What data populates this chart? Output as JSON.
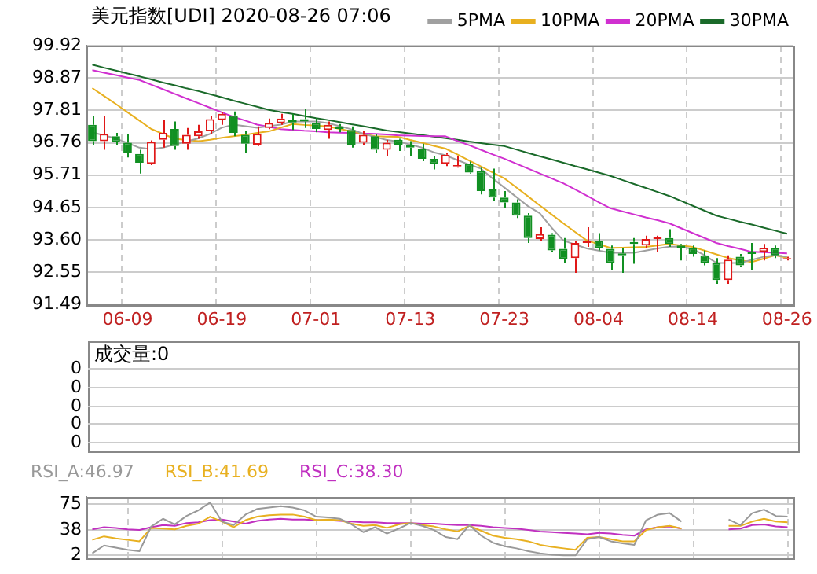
{
  "chart_data": [
    {
      "type": "candlestick",
      "title": "美元指数[UDI] 2020-08-26 07:06",
      "categories": [
        null,
        null,
        null,
        "06-09",
        null,
        null,
        null,
        null,
        null,
        null,
        null,
        "06-19",
        null,
        null,
        null,
        null,
        null,
        null,
        null,
        "07-01",
        null,
        null,
        null,
        null,
        null,
        null,
        null,
        "07-13",
        null,
        null,
        null,
        null,
        null,
        null,
        null,
        "07-23",
        null,
        null,
        null,
        null,
        null,
        null,
        null,
        "08-04",
        null,
        null,
        null,
        null,
        null,
        null,
        null,
        "08-14",
        null,
        null,
        null,
        null,
        null,
        null,
        null,
        "08-26"
      ],
      "ohlc": [
        [
          97.34,
          97.62,
          96.7,
          96.81
        ],
        [
          96.81,
          97.62,
          96.53,
          97.05
        ],
        [
          96.97,
          97.08,
          96.7,
          96.79
        ],
        [
          96.76,
          97.05,
          96.28,
          96.44
        ],
        [
          96.4,
          96.53,
          95.76,
          96.11
        ],
        [
          96.08,
          96.84,
          96.03,
          96.79
        ],
        [
          96.86,
          97.49,
          96.6,
          97.08
        ],
        [
          97.21,
          97.45,
          96.53,
          96.65
        ],
        [
          96.73,
          97.24,
          96.53,
          97.02
        ],
        [
          96.97,
          97.34,
          96.89,
          97.13
        ],
        [
          97.13,
          97.62,
          97.05,
          97.53
        ],
        [
          97.5,
          97.76,
          97.34,
          97.7
        ],
        [
          97.65,
          97.78,
          96.97,
          97.08
        ],
        [
          97.02,
          97.13,
          96.44,
          96.73
        ],
        [
          96.7,
          97.29,
          96.65,
          97.05
        ],
        [
          97.24,
          97.55,
          97.2,
          97.4
        ],
        [
          97.4,
          97.7,
          97.34,
          97.55
        ],
        [
          97.49,
          97.7,
          97.18,
          97.42
        ],
        [
          97.53,
          97.86,
          97.24,
          97.45
        ],
        [
          97.4,
          97.57,
          97.1,
          97.21
        ],
        [
          97.18,
          97.45,
          96.89,
          97.34
        ],
        [
          97.29,
          97.37,
          97.1,
          97.21
        ],
        [
          97.18,
          97.29,
          96.6,
          96.7
        ],
        [
          96.76,
          97.13,
          96.7,
          97.02
        ],
        [
          96.97,
          97.05,
          96.44,
          96.53
        ],
        [
          96.53,
          96.86,
          96.32,
          96.76
        ],
        [
          96.86,
          96.89,
          96.49,
          96.7
        ],
        [
          96.7,
          96.81,
          96.32,
          96.6
        ],
        [
          96.57,
          96.73,
          96.16,
          96.24
        ],
        [
          96.24,
          96.32,
          95.89,
          96.08
        ],
        [
          96.08,
          96.44,
          96.0,
          96.37
        ],
        [
          95.99,
          96.32,
          95.95,
          96.03
        ],
        [
          96.08,
          96.15,
          95.76,
          95.79
        ],
        [
          95.84,
          95.95,
          95.08,
          95.19
        ],
        [
          95.24,
          95.92,
          94.87,
          94.98
        ],
        [
          94.98,
          95.19,
          94.63,
          94.82
        ],
        [
          94.82,
          94.92,
          94.31,
          94.39
        ],
        [
          94.39,
          94.47,
          93.5,
          93.66
        ],
        [
          93.63,
          94.01,
          93.58,
          93.79
        ],
        [
          93.77,
          93.82,
          93.21,
          93.26
        ],
        [
          93.31,
          93.66,
          92.85,
          92.98
        ],
        [
          93.01,
          93.58,
          92.53,
          93.5
        ],
        [
          93.5,
          94.01,
          93.37,
          93.58
        ],
        [
          93.58,
          93.82,
          93.26,
          93.34
        ],
        [
          93.31,
          93.42,
          92.61,
          92.85
        ],
        [
          93.16,
          93.34,
          92.53,
          93.1
        ],
        [
          93.53,
          93.66,
          92.82,
          93.47
        ],
        [
          93.42,
          93.74,
          93.34,
          93.63
        ],
        [
          93.63,
          93.74,
          93.21,
          93.69
        ],
        [
          93.66,
          93.95,
          93.37,
          93.47
        ],
        [
          93.42,
          93.47,
          92.93,
          93.34
        ],
        [
          93.34,
          93.42,
          93.05,
          93.14
        ],
        [
          93.1,
          93.26,
          92.77,
          92.85
        ],
        [
          92.85,
          93.01,
          92.17,
          92.29
        ],
        [
          92.29,
          93.1,
          92.17,
          92.96
        ],
        [
          93.05,
          93.14,
          92.72,
          92.77
        ],
        [
          93.21,
          93.5,
          92.61,
          93.14
        ],
        [
          93.21,
          93.47,
          92.93,
          93.34
        ],
        [
          93.34,
          93.42,
          93.01,
          93.1
        ],
        [
          92.98,
          93.05,
          92.93,
          93.01
        ]
      ],
      "colors": [
        "#119022",
        "#e01818",
        "#119022",
        "#119022",
        "#119022",
        "#e01818",
        "#e01818",
        "#119022",
        "#e01818",
        "#e01818",
        "#e01818",
        "#e01818",
        "#119022",
        "#119022",
        "#e01818",
        "#e01818",
        "#e01818",
        "#119022",
        "#119022",
        "#119022",
        "#e01818",
        "#119022",
        "#119022",
        "#e01818",
        "#119022",
        "#e01818",
        "#119022",
        "#119022",
        "#119022",
        "#119022",
        "#e01818",
        "#e01818",
        "#119022",
        "#119022",
        "#119022",
        "#119022",
        "#119022",
        "#119022",
        "#e01818",
        "#119022",
        "#119022",
        "#e01818",
        "#e01818",
        "#119022",
        "#119022",
        "#119022",
        "#119022",
        "#e01818",
        "#e01818",
        "#119022",
        "#119022",
        "#119022",
        "#119022",
        "#119022",
        "#e01818",
        "#119022",
        "#119022",
        "#e01818",
        "#119022",
        "#e01818"
      ],
      "series": [
        {
          "type": "line",
          "name": "5PMA",
          "color": "#a0a0a0",
          "values": [
            97.1,
            97.0,
            96.9,
            96.75,
            96.6,
            96.55,
            96.6,
            96.7,
            96.8,
            96.9,
            97.05,
            97.25,
            97.35,
            97.3,
            97.25,
            97.3,
            97.35,
            97.45,
            97.45,
            97.45,
            97.4,
            97.3,
            97.2,
            97.05,
            96.95,
            96.85,
            96.8,
            96.7,
            96.6,
            96.45,
            96.35,
            96.2,
            96.05,
            95.92,
            95.6,
            95.3,
            95.0,
            94.7,
            94.47,
            94.0,
            93.58,
            93.45,
            93.32,
            93.25,
            93.18,
            93.18,
            93.18,
            93.25,
            93.32,
            93.38,
            93.38,
            93.3,
            93.1,
            92.85,
            92.85,
            92.85,
            92.95,
            93.05,
            93.1,
            93.05
          ]
        },
        {
          "type": "line",
          "name": "10PMA",
          "color": "#e8b020",
          "values": [
            98.54,
            98.28,
            98.02,
            97.75,
            97.48,
            97.21,
            97.05,
            96.89,
            96.85,
            96.81,
            96.86,
            96.92,
            96.97,
            97.02,
            97.08,
            97.13,
            97.25,
            97.37,
            97.34,
            97.32,
            97.29,
            97.21,
            97.13,
            97.05,
            96.97,
            96.96,
            96.95,
            96.85,
            96.76,
            96.66,
            96.57,
            96.38,
            96.18,
            95.99,
            95.79,
            95.6,
            95.31,
            95.02,
            94.72,
            94.43,
            94.14,
            93.86,
            93.58,
            93.46,
            93.34,
            93.35,
            93.36,
            93.37,
            93.42,
            93.47,
            93.42,
            93.37,
            93.25,
            93.13,
            93.01,
            92.94,
            92.88,
            92.99,
            93.1,
            93.02
          ]
        },
        {
          "type": "line",
          "name": "20PMA",
          "color": "#d030d0",
          "values": [
            99.12,
            99.04,
            98.96,
            98.88,
            98.8,
            98.65,
            98.5,
            98.35,
            98.2,
            98.05,
            97.9,
            97.75,
            97.6,
            97.48,
            97.35,
            97.28,
            97.2,
            97.18,
            97.15,
            97.13,
            97.1,
            97.09,
            97.08,
            97.06,
            97.05,
            97.03,
            97.0,
            96.99,
            96.98,
            96.97,
            96.97,
            96.82,
            96.68,
            96.53,
            96.38,
            96.24,
            96.08,
            95.92,
            95.76,
            95.6,
            95.44,
            95.24,
            95.04,
            94.83,
            94.63,
            94.53,
            94.43,
            94.33,
            94.24,
            94.14,
            93.98,
            93.82,
            93.66,
            93.5,
            93.4,
            93.31,
            93.21,
            93.2,
            93.18,
            93.16
          ]
        },
        {
          "type": "line",
          "name": "30PMA",
          "color": "#1a6a2a",
          "values": [
            99.3,
            99.2,
            99.11,
            99.01,
            98.92,
            98.82,
            98.72,
            98.63,
            98.53,
            98.44,
            98.34,
            98.24,
            98.13,
            98.03,
            97.93,
            97.83,
            97.76,
            97.7,
            97.63,
            97.56,
            97.5,
            97.43,
            97.36,
            97.3,
            97.23,
            97.16,
            97.11,
            97.06,
            97.01,
            96.96,
            96.91,
            96.86,
            96.8,
            96.75,
            96.7,
            96.65,
            96.54,
            96.43,
            96.32,
            96.22,
            96.11,
            96.0,
            95.9,
            95.79,
            95.68,
            95.55,
            95.42,
            95.29,
            95.16,
            95.03,
            94.87,
            94.71,
            94.55,
            94.39,
            94.29,
            94.19,
            94.1,
            94.0,
            93.9,
            93.8
          ]
        }
      ],
      "ylim": [
        91.49,
        99.92
      ],
      "yticks": [
        91.49,
        92.55,
        {
          "value": 93.6,
          "label": "93.60"
        },
        94.65,
        95.71,
        96.76,
        97.81,
        98.87,
        99.92
      ],
      "grid": true,
      "legend": "top right",
      "marker": "none"
    },
    {
      "type": "other",
      "annotations": [
        "成交量:0",
        "0",
        "0",
        "0",
        "0",
        "0"
      ]
    },
    {
      "type": "line",
      "categories": [
        null,
        null,
        null,
        null,
        null,
        null,
        null,
        null,
        null,
        null,
        null,
        null,
        null,
        null,
        null,
        null,
        null,
        null,
        null,
        null,
        null,
        null,
        null,
        null,
        null,
        null,
        null,
        null,
        null,
        null,
        null,
        null,
        null,
        null,
        null,
        null,
        null,
        null,
        null,
        null,
        null,
        null,
        null,
        null,
        null,
        null,
        null,
        null,
        null,
        null,
        null,
        null,
        null,
        null,
        null,
        null,
        null,
        null,
        null,
        null
      ],
      "series": [
        {
          "name": "RSI_A:46.97",
          "color": "#999999",
          "values": [
            5,
            16,
            13,
            10,
            8,
            43,
            54,
            46,
            58,
            66,
            77,
            50,
            45,
            60,
            68,
            70,
            72,
            70,
            66,
            57,
            56,
            54,
            46,
            35,
            42,
            33,
            40,
            48,
            44,
            38,
            28,
            25,
            45,
            30,
            20,
            15,
            12,
            8,
            5,
            3,
            2,
            2,
            25,
            28,
            22,
            19,
            17,
            52,
            60,
            62,
            50,
            null,
            null,
            null,
            53,
            45,
            62,
            67,
            58,
            57
          ]
        },
        {
          "name": "RSI_B:41.69",
          "color": "#e8b020",
          "values": [
            24,
            29,
            26,
            24,
            22,
            41,
            40,
            39,
            44,
            47,
            57,
            50,
            42,
            52,
            57,
            59,
            60,
            60,
            57,
            52,
            53,
            52,
            47,
            44,
            45,
            41,
            46,
            48,
            45,
            43,
            39,
            36,
            44,
            37,
            30,
            27,
            25,
            22,
            17,
            14,
            12,
            10,
            27,
            28,
            25,
            22,
            22,
            38,
            42,
            44,
            40,
            null,
            null,
            null,
            44,
            44,
            50,
            54,
            50,
            49
          ]
        },
        {
          "name": "RSI_C:38.30",
          "color": "#c030c0",
          "values": [
            39,
            42,
            41,
            39,
            38,
            42,
            45,
            44,
            48,
            49,
            52,
            53,
            50,
            47,
            51,
            53,
            54,
            53,
            53,
            52,
            52,
            51,
            50,
            49,
            49,
            48,
            48,
            48,
            47,
            47,
            46,
            45,
            45,
            44,
            42,
            41,
            40,
            38,
            36,
            35,
            34,
            33,
            32,
            34,
            33,
            31,
            30,
            39,
            42,
            43,
            40,
            null,
            null,
            null,
            39,
            40,
            45,
            46,
            43,
            42
          ]
        }
      ],
      "ylim": [
        -3,
        85
      ],
      "yticks": [
        2,
        38,
        75
      ],
      "grid": true,
      "legend": "top left",
      "tick_labels": "y",
      "marker": "none"
    }
  ]
}
